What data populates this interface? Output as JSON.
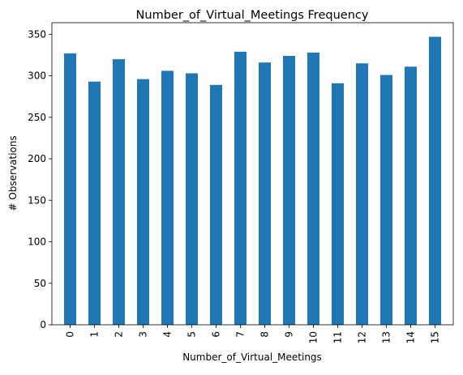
{
  "chart_data": {
    "type": "bar",
    "title": "Number_of_Virtual_Meetings Frequency",
    "xlabel": "Number_of_Virtual_Meetings",
    "ylabel": "# Observations",
    "categories": [
      "0",
      "1",
      "2",
      "3",
      "4",
      "5",
      "6",
      "7",
      "8",
      "9",
      "10",
      "11",
      "12",
      "13",
      "14",
      "15"
    ],
    "values": [
      327,
      293,
      320,
      296,
      306,
      303,
      289,
      329,
      316,
      324,
      328,
      291,
      315,
      301,
      311,
      347
    ],
    "ylim": [
      0,
      364
    ],
    "yticks": [
      0,
      50,
      100,
      150,
      200,
      250,
      300,
      350
    ],
    "bar_color": "#1f77b4",
    "grid": false,
    "legend": "none"
  }
}
